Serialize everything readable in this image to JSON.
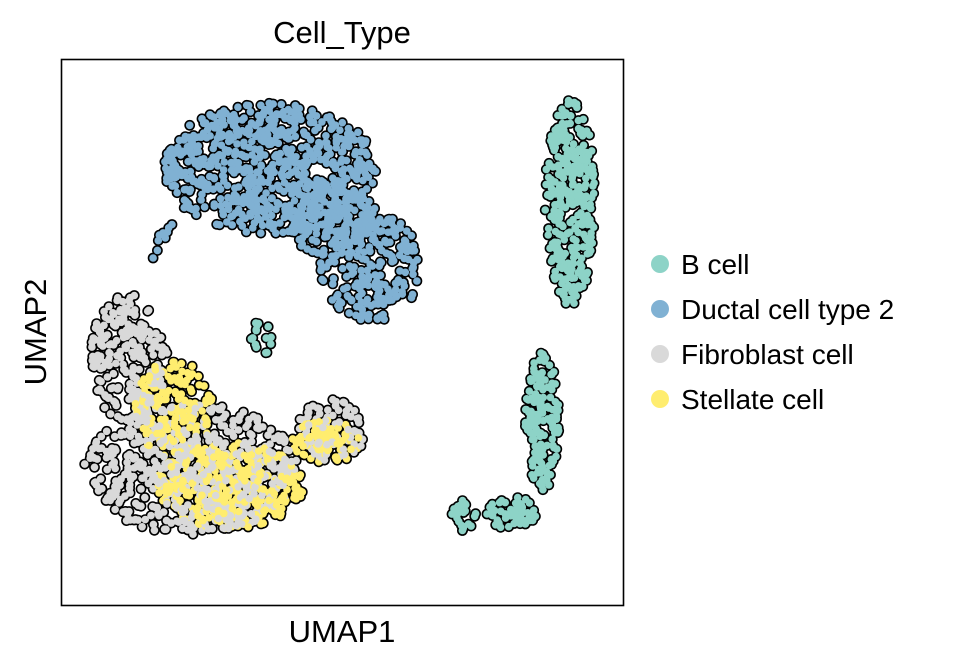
{
  "chart_data": {
    "type": "scatter",
    "title": "Cell_Type",
    "xlabel": "UMAP1",
    "ylabel": "UMAP2",
    "xlim": [
      0,
      100
    ],
    "ylim": [
      0,
      100
    ],
    "ticks": "none",
    "grid": false,
    "point_style": "filled circles with black outline",
    "legend": {
      "placement": "right, outside plot area"
    },
    "series": [
      {
        "name": "B cell",
        "color": "#8dd3c7",
        "regions": [
          {
            "shape": "ellipse",
            "cx": 90.5,
            "cy": 74,
            "rx": 4.5,
            "ry": 19,
            "n": 330
          },
          {
            "shape": "ellipse",
            "cx": 85.5,
            "cy": 34,
            "rx": 3,
            "ry": 13,
            "n": 150
          },
          {
            "shape": "ellipse",
            "cx": 80,
            "cy": 17,
            "rx": 4.5,
            "ry": 3,
            "n": 60
          },
          {
            "shape": "ellipse",
            "cx": 71.5,
            "cy": 16.5,
            "rx": 2.2,
            "ry": 3,
            "n": 24
          },
          {
            "shape": "ellipse",
            "cx": 35,
            "cy": 49,
            "rx": 2.5,
            "ry": 3.5,
            "n": 16
          }
        ]
      },
      {
        "name": "Ductal cell type 2",
        "color": "#80b1d3",
        "regions": [
          {
            "shape": "ellipse",
            "cx": 37,
            "cy": 80,
            "rx": 19,
            "ry": 12,
            "n": 700
          },
          {
            "shape": "ellipse",
            "cx": 55,
            "cy": 62,
            "rx": 9,
            "ry": 10,
            "n": 220
          },
          {
            "shape": "ellipse",
            "cx": 48,
            "cy": 71,
            "rx": 8,
            "ry": 7,
            "n": 160
          },
          {
            "shape": "line",
            "from": [
              20,
              71
            ],
            "to": [
              15,
              62
            ],
            "n": 10
          }
        ]
      },
      {
        "name": "Fibroblast cell",
        "color": "#d9d9d9",
        "regions": [
          {
            "shape": "ellipse",
            "cx": 23,
            "cy": 25,
            "rx": 19,
            "ry": 12,
            "n": 560
          },
          {
            "shape": "ellipse",
            "cx": 12,
            "cy": 45,
            "rx": 7,
            "ry": 12,
            "n": 220
          },
          {
            "shape": "ellipse",
            "cx": 48,
            "cy": 32,
            "rx": 6,
            "ry": 6,
            "n": 80
          }
        ]
      },
      {
        "name": "Stellate cell",
        "color": "#ffed6f",
        "regions": [
          {
            "shape": "ellipse",
            "cx": 30,
            "cy": 22,
            "rx": 13,
            "ry": 8,
            "n": 330
          },
          {
            "shape": "ellipse",
            "cx": 20,
            "cy": 36,
            "rx": 7,
            "ry": 9,
            "n": 160
          },
          {
            "shape": "ellipse",
            "cx": 47,
            "cy": 30,
            "rx": 6,
            "ry": 4,
            "n": 90
          }
        ]
      }
    ]
  }
}
